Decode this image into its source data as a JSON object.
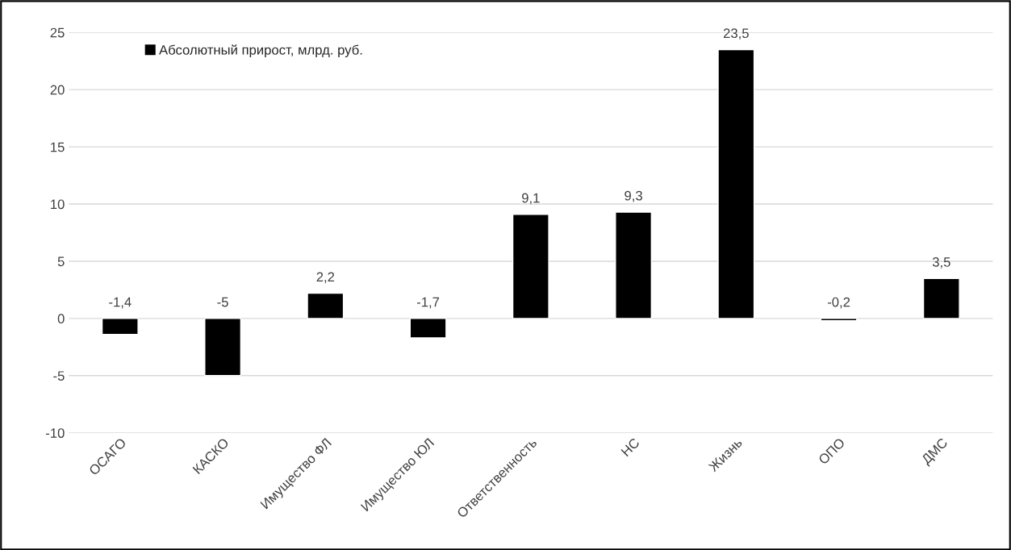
{
  "chart_data": {
    "type": "bar",
    "categories": [
      "ОСАГО",
      "КАСКО",
      "Имущество ФЛ",
      "Имущество ЮЛ",
      "Ответственность",
      "НС",
      "Жизнь",
      "ОПО",
      "ДМС"
    ],
    "series": [
      {
        "name": "Абсолютный прирост, млрд. руб.",
        "color": "#000000",
        "values": [
          -1.4,
          -5,
          2.2,
          -1.7,
          9.1,
          9.3,
          23.5,
          -0.2,
          3.5
        ],
        "value_labels": [
          "-1,4",
          "-5",
          "2,2",
          "-1,7",
          "9,1",
          "9,3",
          "23,5",
          "-0,2",
          "3,5"
        ]
      }
    ],
    "ylim": [
      -10,
      25
    ],
    "yticks": [
      -10,
      -5,
      0,
      5,
      10,
      15,
      20,
      25
    ],
    "grid": "y",
    "legend": "top left"
  }
}
